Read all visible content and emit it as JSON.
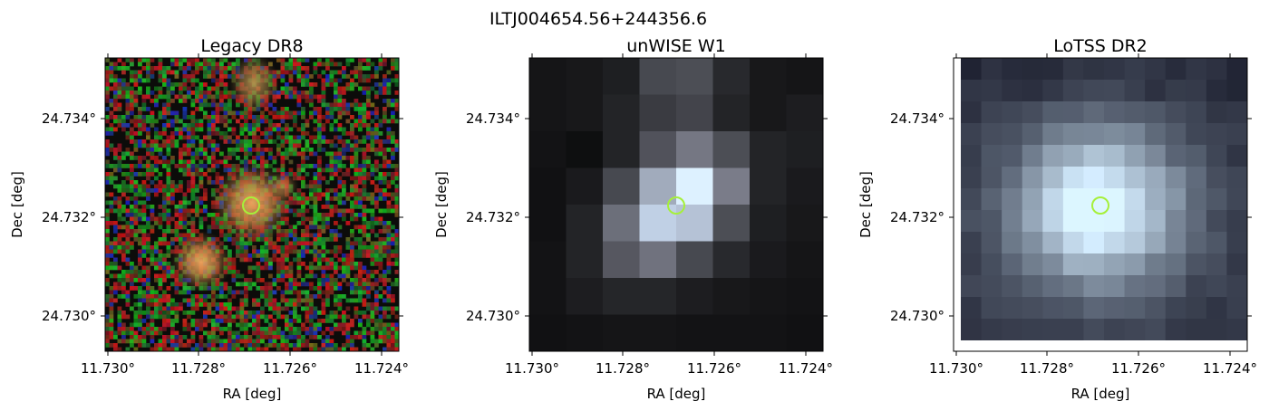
{
  "figure": {
    "title": "ILTJ004654.56+244356.6"
  },
  "panels": [
    {
      "id": "legacy",
      "title": "Legacy DR8",
      "xlabel": "RA [deg]",
      "ylabel": "Dec [deg]",
      "xticks": [
        "11.730°",
        "11.728°",
        "11.726°",
        "11.724°"
      ],
      "yticks": [
        "24.734°",
        "24.732°",
        "24.730°"
      ],
      "image": "color optical cutout, noisy red/green background with three orange galaxies"
    },
    {
      "id": "unwise",
      "title": "unWISE W1",
      "xlabel": "RA [deg]",
      "ylabel": "Dec [deg]",
      "xticks": [
        "11.730°",
        "11.728°",
        "11.726°",
        "11.724°"
      ],
      "yticks": [
        "24.734°",
        "24.732°",
        "24.730°"
      ],
      "image": "coarse grayscale infrared cutout, bright source at center"
    },
    {
      "id": "lotss",
      "title": "LoTSS DR2",
      "xlabel": "RA [deg]",
      "ylabel": "Dec [deg]",
      "xticks": [
        "11.730°",
        "11.728°",
        "11.726°",
        "11.724°"
      ],
      "yticks": [
        "24.734°",
        "24.732°",
        "24.730°"
      ],
      "image": "grayscale radio cutout, extended bright blob at center"
    }
  ],
  "marker": {
    "shape": "circle",
    "color": "#a6f03a"
  }
}
